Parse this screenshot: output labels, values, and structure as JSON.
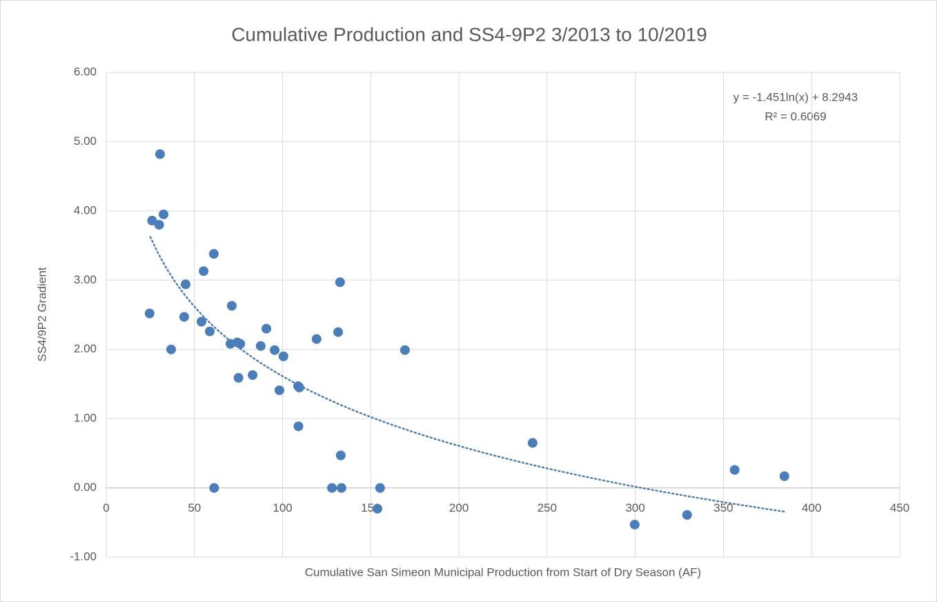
{
  "chart_data": {
    "type": "scatter",
    "title": "Cumulative Production and SS4-9P2 3/2013 to 10/2019",
    "x_label": "Cumulative San Simeon Municipal Production from Start of Dry Season (AF)",
    "y_label": "SS4/9P2 Gradient",
    "series": [
      {
        "color": "#4a7ebb",
        "x": [
          26,
          30.5,
          32.5,
          30,
          24.6,
          36.8,
          45,
          44.2,
          55.2,
          61,
          54,
          58.7,
          61.2,
          71.2,
          70.4,
          74.3,
          76,
          75,
          83,
          87.6,
          90.8,
          95.5,
          100.5,
          98.2,
          108.8,
          109.5,
          109,
          119.3,
          131.5,
          132.6,
          133,
          128,
          133.4,
          155.3,
          153.8,
          169.4,
          241.8,
          356.4,
          384.6,
          299.7,
          329.4
        ],
        "values": [
          3.86,
          4.82,
          3.95,
          3.8,
          2.52,
          2,
          2.94,
          2.47,
          3.13,
          3.38,
          2.4,
          2.26,
          0,
          2.63,
          2.08,
          2.1,
          2.08,
          1.59,
          1.63,
          2.05,
          2.3,
          1.99,
          1.9,
          1.41,
          1.47,
          1.45,
          0.89,
          2.15,
          2.25,
          2.97,
          0.47,
          0,
          0,
          0,
          -0.3,
          1.99,
          0.65,
          0.26,
          0.17,
          -0.53,
          -0.39
        ]
      }
    ],
    "trendline": {
      "slope": -1.451,
      "intercept": 8.2943,
      "xlim": [
        25,
        385
      ],
      "equation": "y = -1.451ln(x) + 8.2943",
      "r2": "R² = 0.6069"
    },
    "xlim": [
      0,
      450
    ],
    "xticks": [
      0,
      50,
      100,
      150,
      200,
      250,
      300,
      350,
      400,
      450
    ],
    "ylim": [
      -1,
      6
    ],
    "yticks": [
      {
        "value": -1,
        "label": "-1.00"
      },
      {
        "value": 0,
        "label": "0.00"
      },
      {
        "value": 1,
        "label": "1.00"
      },
      {
        "value": 2,
        "label": "2.00"
      },
      {
        "value": 3,
        "label": "3.00"
      },
      {
        "value": 4,
        "label": "4.00"
      },
      {
        "value": 5,
        "label": "5.00"
      },
      {
        "value": 6,
        "label": "6.00"
      }
    ],
    "grid": true
  }
}
